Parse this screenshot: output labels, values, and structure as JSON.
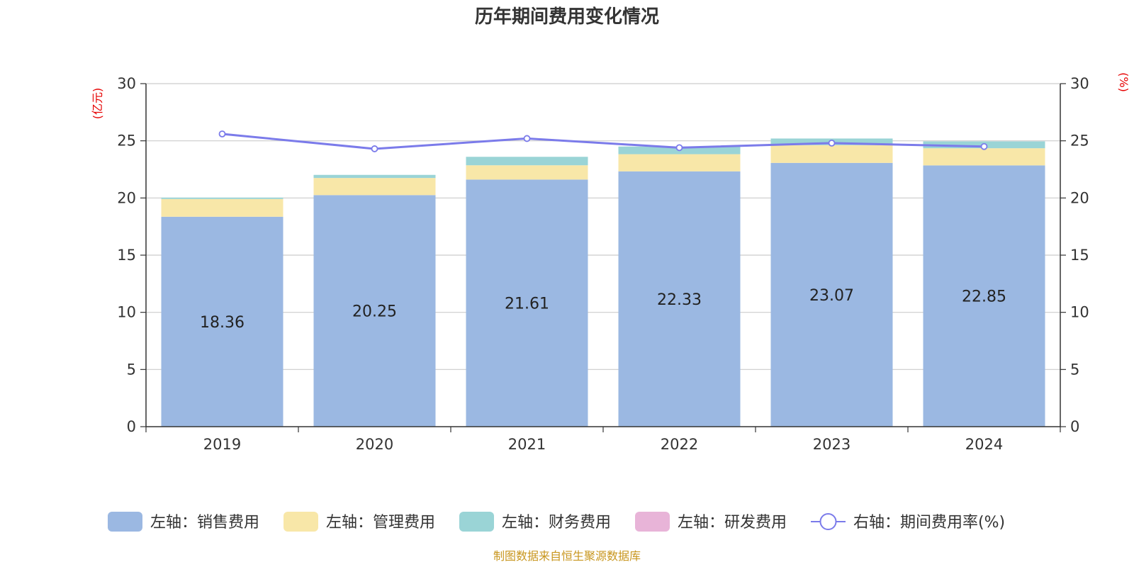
{
  "chart_data": {
    "type": "bar",
    "title": "历年期间费用变化情况",
    "left_unit": "(亿元)",
    "right_unit": "(%)",
    "categories": [
      "2019",
      "2020",
      "2021",
      "2022",
      "2023",
      "2024"
    ],
    "y_left": {
      "min": 0,
      "max": 30,
      "ticks": [
        0,
        5,
        10,
        15,
        20,
        25,
        30
      ]
    },
    "y_right": {
      "min": 0,
      "max": 30,
      "ticks": [
        0,
        5,
        10,
        15,
        20,
        25,
        30
      ]
    },
    "stacked": true,
    "grid": true,
    "legend_position": "bottom",
    "series": [
      {
        "name": "左轴：销售费用",
        "type": "bar",
        "axis": "left",
        "color": "#9bb8e2",
        "values": [
          18.36,
          20.25,
          21.61,
          22.33,
          23.07,
          22.85
        ],
        "labels": [
          "18.36",
          "20.25",
          "21.61",
          "22.33",
          "23.07",
          "22.85"
        ]
      },
      {
        "name": "左轴：管理费用",
        "type": "bar",
        "axis": "left",
        "color": "#f8e7a8",
        "values": [
          1.55,
          1.5,
          1.25,
          1.5,
          1.55,
          1.5
        ]
      },
      {
        "name": "左轴：财务费用",
        "type": "bar",
        "axis": "left",
        "color": "#9ad4d6",
        "values": [
          0.12,
          0.27,
          0.74,
          0.67,
          0.58,
          0.6
        ]
      },
      {
        "name": "左轴：研发费用",
        "type": "bar",
        "axis": "left",
        "color": "#e8b4d8",
        "values": [
          0,
          0,
          0,
          0,
          0,
          0
        ]
      },
      {
        "name": "右轴：期间费用率(%)",
        "type": "line",
        "axis": "right",
        "color": "#7b7bea",
        "values": [
          25.6,
          24.3,
          25.2,
          24.4,
          24.8,
          24.5
        ]
      }
    ]
  },
  "source": "制图数据来自恒生聚源数据库"
}
